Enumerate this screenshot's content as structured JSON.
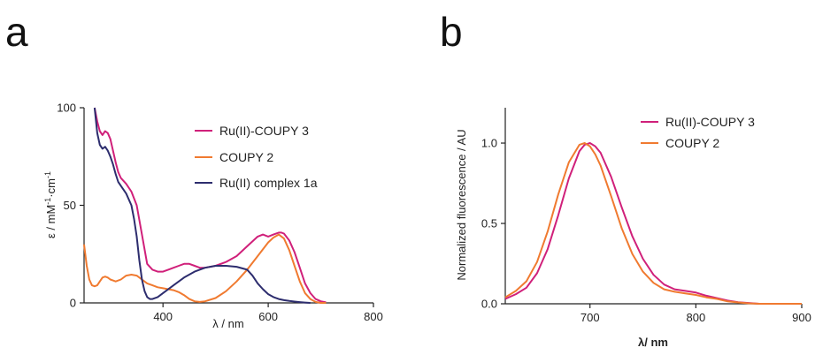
{
  "panels": {
    "a": {
      "letter": "a"
    },
    "b": {
      "letter": "b"
    }
  },
  "chart_data": [
    {
      "type": "line",
      "panel": "a",
      "title": "",
      "xlabel": "λ / nm",
      "ylabel_parts": [
        "ε / mM",
        "-1",
        "·cm",
        "-1"
      ],
      "xlim": [
        250,
        800
      ],
      "ylim": [
        0,
        100
      ],
      "xticks": [
        400,
        600,
        800
      ],
      "xtick_labels": [
        "400",
        "600",
        "800"
      ],
      "yticks": [
        0,
        50,
        100
      ],
      "ytick_labels": [
        "0",
        "50",
        "100"
      ],
      "legend_position": "top-right",
      "series": [
        {
          "name": "Ru(II)-COUPY 3",
          "color": "#d0207a",
          "x": [
            270,
            275,
            280,
            285,
            290,
            295,
            300,
            305,
            310,
            315,
            320,
            330,
            340,
            350,
            360,
            370,
            380,
            390,
            400,
            410,
            420,
            430,
            440,
            450,
            460,
            470,
            480,
            500,
            520,
            540,
            560,
            580,
            590,
            600,
            610,
            620,
            625,
            630,
            640,
            650,
            660,
            670,
            680,
            690,
            700,
            710
          ],
          "y": [
            100,
            93,
            88,
            86,
            88,
            87,
            84,
            78,
            72,
            67,
            64,
            61,
            57,
            50,
            35,
            20,
            17,
            16,
            16,
            17,
            18,
            19,
            20,
            20,
            19,
            18,
            18,
            19,
            21,
            24,
            29,
            34,
            35,
            34,
            35,
            36,
            36,
            35.5,
            32,
            26,
            18,
            10,
            5,
            2,
            0.8,
            0.3
          ]
        },
        {
          "name": "COUPY 2",
          "color": "#f07a30",
          "x": [
            250,
            255,
            260,
            265,
            270,
            275,
            280,
            285,
            290,
            295,
            300,
            310,
            320,
            330,
            340,
            350,
            360,
            370,
            380,
            390,
            400,
            410,
            420,
            430,
            440,
            450,
            460,
            470,
            480,
            500,
            520,
            540,
            560,
            580,
            600,
            610,
            620,
            630,
            640,
            650,
            660,
            670,
            680,
            690,
            700,
            710
          ],
          "y": [
            30,
            19,
            12,
            9,
            8.5,
            9,
            11,
            13,
            13.5,
            13,
            12,
            11,
            12,
            14,
            14.5,
            14,
            12,
            10,
            9,
            8,
            7.5,
            7,
            6.5,
            5.5,
            4,
            2,
            0.8,
            0.5,
            0.8,
            2.5,
            6,
            11,
            17,
            24,
            31,
            33.5,
            35,
            33,
            27,
            19,
            11,
            5,
            2,
            0.5,
            0,
            0
          ]
        },
        {
          "name": "Ru(II) complex 1a",
          "color": "#2d2d6e",
          "x": [
            270,
            275,
            280,
            285,
            290,
            295,
            300,
            305,
            310,
            315,
            320,
            330,
            340,
            345,
            350,
            355,
            360,
            365,
            370,
            375,
            380,
            390,
            400,
            420,
            440,
            460,
            480,
            500,
            520,
            540,
            560,
            570,
            580,
            590,
            600,
            610,
            620,
            630,
            640,
            650,
            660,
            670,
            680
          ],
          "y": [
            100,
            87,
            81,
            79,
            80,
            78,
            75,
            71,
            66,
            62,
            60,
            56,
            50,
            43,
            34,
            22,
            12,
            6,
            3,
            2,
            2,
            3,
            5,
            9,
            13,
            16,
            18,
            19,
            19,
            18.5,
            17,
            14,
            10,
            7,
            4.5,
            3,
            2,
            1.4,
            1,
            0.7,
            0.4,
            0.2,
            0
          ]
        }
      ]
    },
    {
      "type": "line",
      "panel": "b",
      "title": "",
      "xlabel": "λ/  nm",
      "ylabel": "Normalized fluorescence / AU",
      "xlim": [
        620,
        900
      ],
      "ylim": [
        0,
        1.22
      ],
      "xticks": [
        700,
        800,
        900
      ],
      "xtick_labels": [
        "700",
        "800",
        "900"
      ],
      "yticks": [
        0,
        0.5,
        1.0
      ],
      "ytick_labels": [
        "0.0",
        "0.5",
        "1.0"
      ],
      "legend_position": "top-right",
      "series": [
        {
          "name": "Ru(II)-COUPY 3",
          "color": "#d0207a",
          "x": [
            620,
            630,
            640,
            650,
            660,
            670,
            680,
            690,
            695,
            700,
            705,
            710,
            720,
            730,
            740,
            750,
            760,
            770,
            780,
            790,
            800,
            810,
            820,
            830,
            840,
            850,
            860,
            880,
            900
          ],
          "y": [
            0.03,
            0.06,
            0.1,
            0.19,
            0.34,
            0.55,
            0.78,
            0.95,
            0.99,
            1.0,
            0.98,
            0.94,
            0.79,
            0.6,
            0.42,
            0.28,
            0.18,
            0.12,
            0.09,
            0.08,
            0.07,
            0.05,
            0.035,
            0.02,
            0.01,
            0.005,
            0,
            0,
            0
          ]
        },
        {
          "name": "COUPY 2",
          "color": "#f07a30",
          "x": [
            620,
            630,
            640,
            650,
            660,
            670,
            680,
            690,
            695,
            700,
            705,
            710,
            720,
            730,
            740,
            750,
            760,
            770,
            780,
            790,
            800,
            810,
            820,
            830,
            840,
            850,
            860,
            880,
            900
          ],
          "y": [
            0.04,
            0.08,
            0.14,
            0.26,
            0.45,
            0.68,
            0.88,
            0.99,
            1.0,
            0.98,
            0.93,
            0.86,
            0.67,
            0.47,
            0.31,
            0.2,
            0.13,
            0.09,
            0.075,
            0.065,
            0.055,
            0.04,
            0.03,
            0.015,
            0.008,
            0.003,
            0,
            0,
            0
          ]
        }
      ]
    }
  ]
}
